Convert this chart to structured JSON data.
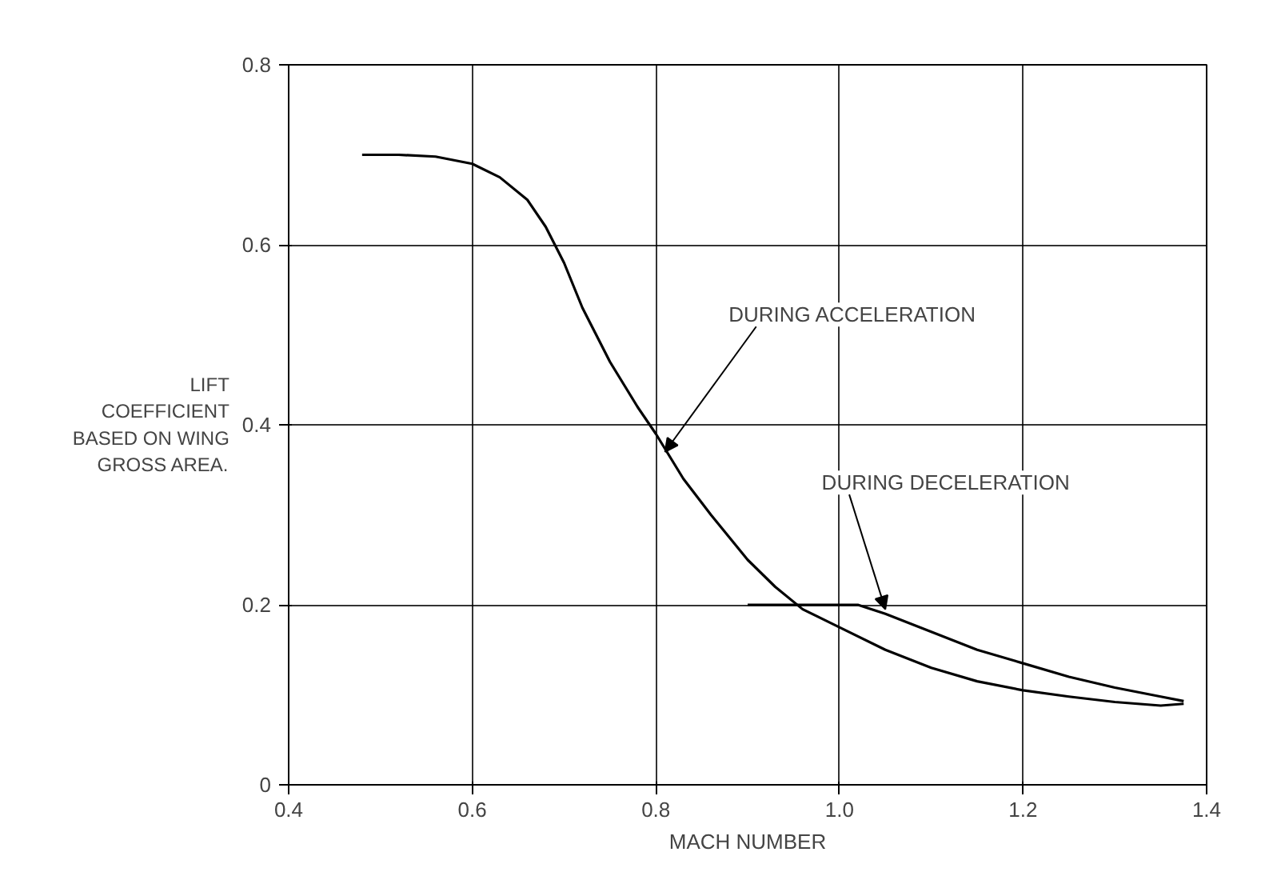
{
  "chart_data": {
    "type": "line",
    "xlabel": "MACH NUMBER",
    "ylabel": "LIFT\nCOEFFICIENT\nBASED ON WING\nGROSS AREA.",
    "xlim": [
      0.4,
      1.4
    ],
    "ylim": [
      0,
      0.8
    ],
    "xticks": [
      0.4,
      0.6,
      0.8,
      {
        "value": 1.0,
        "label": "1.0"
      },
      1.2,
      1.4
    ],
    "yticks": [
      0,
      0.2,
      0.4,
      0.6,
      0.8
    ],
    "grid": true,
    "line_style": "solid",
    "marker": "none",
    "series": [
      {
        "color": "#000000",
        "x": [
          0.48,
          0.52,
          0.56,
          0.6,
          0.63,
          0.66,
          0.68,
          0.7,
          0.72,
          0.75,
          0.78,
          0.8,
          0.83,
          0.86,
          0.9,
          0.93,
          0.96,
          1.0,
          1.05,
          1.1,
          1.15,
          1.2,
          1.25,
          1.3,
          1.35,
          1.375
        ],
        "values": [
          0.7,
          0.7,
          0.698,
          0.69,
          0.675,
          0.65,
          0.62,
          0.58,
          0.53,
          0.47,
          0.42,
          0.39,
          0.34,
          0.3,
          0.25,
          0.22,
          0.195,
          0.175,
          0.15,
          0.13,
          0.115,
          0.105,
          0.098,
          0.092,
          0.088,
          0.09
        ]
      },
      {
        "color": "#000000",
        "x": [
          0.9,
          0.95,
          1.0,
          1.02,
          1.05,
          1.1,
          1.15,
          1.2,
          1.25,
          1.3,
          1.35,
          1.375
        ],
        "values": [
          0.2,
          0.2,
          0.2,
          0.2,
          0.19,
          0.17,
          0.15,
          0.135,
          0.12,
          0.108,
          0.098,
          0.093
        ]
      }
    ],
    "annotations": [
      {
        "text": "DURING  ACCELERATION",
        "x": 0.81,
        "y": 0.37
      },
      {
        "text": "DURING  DECELERATION",
        "x": 1.05,
        "y": 0.195
      }
    ]
  }
}
